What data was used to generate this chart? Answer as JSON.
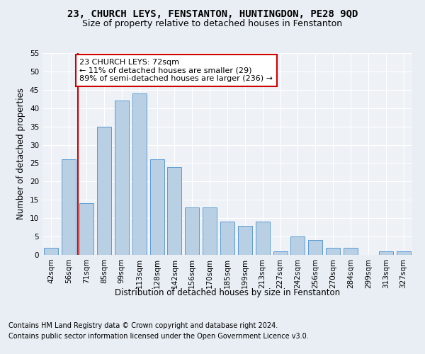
{
  "title": "23, CHURCH LEYS, FENSTANTON, HUNTINGDON, PE28 9QD",
  "subtitle": "Size of property relative to detached houses in Fenstanton",
  "xlabel": "Distribution of detached houses by size in Fenstanton",
  "ylabel": "Number of detached properties",
  "bar_labels": [
    "42sqm",
    "56sqm",
    "71sqm",
    "85sqm",
    "99sqm",
    "113sqm",
    "128sqm",
    "142sqm",
    "156sqm",
    "170sqm",
    "185sqm",
    "199sqm",
    "213sqm",
    "227sqm",
    "242sqm",
    "256sqm",
    "270sqm",
    "284sqm",
    "299sqm",
    "313sqm",
    "327sqm"
  ],
  "bar_values": [
    2,
    26,
    14,
    35,
    42,
    44,
    26,
    24,
    13,
    13,
    9,
    8,
    9,
    1,
    5,
    4,
    2,
    2,
    0,
    1,
    1
  ],
  "bar_color": "#b8cfe4",
  "bar_edgecolor": "#5b9bd5",
  "bar_width": 0.8,
  "vline_x": 1.5,
  "vline_color": "#cc0000",
  "annotation_text": "23 CHURCH LEYS: 72sqm\n← 11% of detached houses are smaller (29)\n89% of semi-detached houses are larger (236) →",
  "annotation_box_color": "#ffffff",
  "annotation_box_edgecolor": "#cc0000",
  "ylim": [
    0,
    55
  ],
  "yticks": [
    0,
    5,
    10,
    15,
    20,
    25,
    30,
    35,
    40,
    45,
    50,
    55
  ],
  "bg_color": "#e8eef4",
  "plot_bg_color": "#eef2f7",
  "footer_line1": "Contains HM Land Registry data © Crown copyright and database right 2024.",
  "footer_line2": "Contains public sector information licensed under the Open Government Licence v3.0.",
  "title_fontsize": 10,
  "subtitle_fontsize": 9,
  "axis_label_fontsize": 8.5,
  "tick_fontsize": 7.5,
  "annotation_fontsize": 8,
  "footer_fontsize": 7
}
